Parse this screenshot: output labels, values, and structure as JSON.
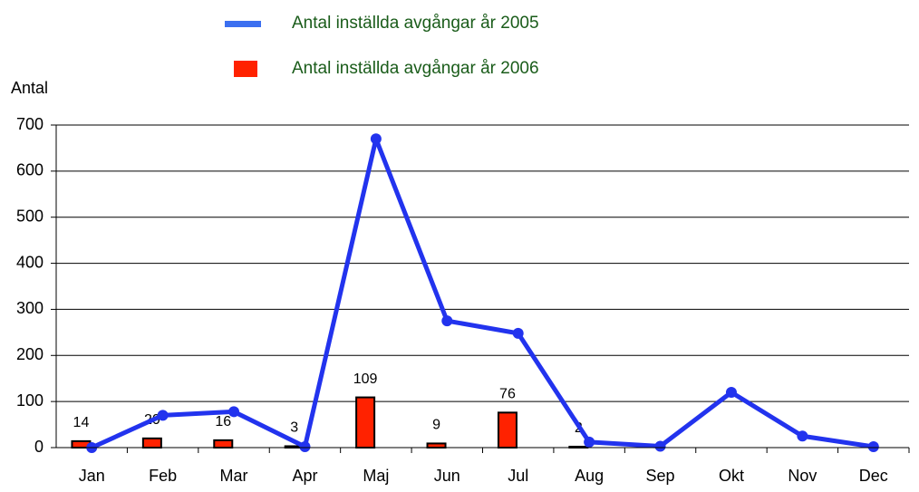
{
  "chart_data": {
    "type": "bar",
    "y_label": "Antal",
    "categories": [
      "Jan",
      "Feb",
      "Mar",
      "Apr",
      "Maj",
      "Jun",
      "Jul",
      "Aug",
      "Sep",
      "Okt",
      "Nov",
      "Dec"
    ],
    "series": [
      {
        "name": "Antal inställda avgångar år 2005",
        "type": "line",
        "color": "#2233ee",
        "values": [
          0,
          70,
          78,
          2,
          670,
          275,
          248,
          12,
          3,
          120,
          25,
          2
        ]
      },
      {
        "name": "Antal inställda avgångar år 2006",
        "type": "bar",
        "color": "#ff2200",
        "values": [
          14,
          20,
          16,
          3,
          109,
          9,
          76,
          2,
          null,
          null,
          null,
          null
        ]
      }
    ],
    "ylim": [
      0,
      700
    ],
    "yticks": [
      0,
      100,
      200,
      300,
      400,
      500,
      600,
      700
    ],
    "grid": true
  }
}
